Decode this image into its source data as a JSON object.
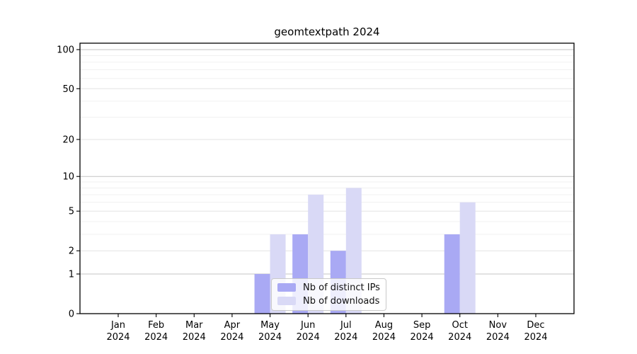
{
  "title": "geomtextpath 2024",
  "chart_data": {
    "type": "bar",
    "title": "geomtextpath 2024",
    "x_categories": [
      {
        "month": "Jan",
        "year": "2024"
      },
      {
        "month": "Feb",
        "year": "2024"
      },
      {
        "month": "Mar",
        "year": "2024"
      },
      {
        "month": "Apr",
        "year": "2024"
      },
      {
        "month": "May",
        "year": "2024"
      },
      {
        "month": "Jun",
        "year": "2024"
      },
      {
        "month": "Jul",
        "year": "2024"
      },
      {
        "month": "Aug",
        "year": "2024"
      },
      {
        "month": "Sep",
        "year": "2024"
      },
      {
        "month": "Oct",
        "year": "2024"
      },
      {
        "month": "Nov",
        "year": "2024"
      },
      {
        "month": "Dec",
        "year": "2024"
      }
    ],
    "series": [
      {
        "name": "Nb of distinct IPs",
        "color": "#a9a9f4",
        "values": [
          0,
          0,
          0,
          0,
          1,
          3,
          2,
          0,
          0,
          3,
          0,
          0
        ]
      },
      {
        "name": "Nb of downloads",
        "color": "#d9d9f6",
        "values": [
          0,
          0,
          0,
          0,
          3,
          7,
          8,
          0,
          0,
          6,
          0,
          0
        ]
      }
    ],
    "y_axis": {
      "scale": "log1p",
      "range": [
        0,
        112
      ],
      "major_ticks": [
        {
          "value": 0,
          "label": "0"
        },
        {
          "value": 1,
          "label": "1"
        },
        {
          "value": 2,
          "label": "2"
        },
        {
          "value": 5,
          "label": "5"
        },
        {
          "value": 10,
          "label": "10"
        },
        {
          "value": 20,
          "label": "20"
        },
        {
          "value": 50,
          "label": "50"
        },
        {
          "value": 100,
          "label": "100"
        }
      ],
      "minor_gridlines": [
        3,
        4,
        6,
        7,
        8,
        9,
        30,
        40,
        60,
        70,
        80,
        90
      ],
      "emphasized_gridlines": [
        1,
        10,
        100
      ]
    },
    "legend": {
      "position": "bottom-center"
    },
    "grid": true,
    "xlabel": "",
    "ylabel": ""
  },
  "colors": {
    "background": "#ffffff",
    "axis": "#000000",
    "grid_minor": "#f0f0f0",
    "grid_major": "#e3e3e3",
    "grid_major_emphasis": "#c4c4c4",
    "bar_distinct_ips": "#a9a9f4",
    "bar_downloads": "#d9d9f6"
  }
}
